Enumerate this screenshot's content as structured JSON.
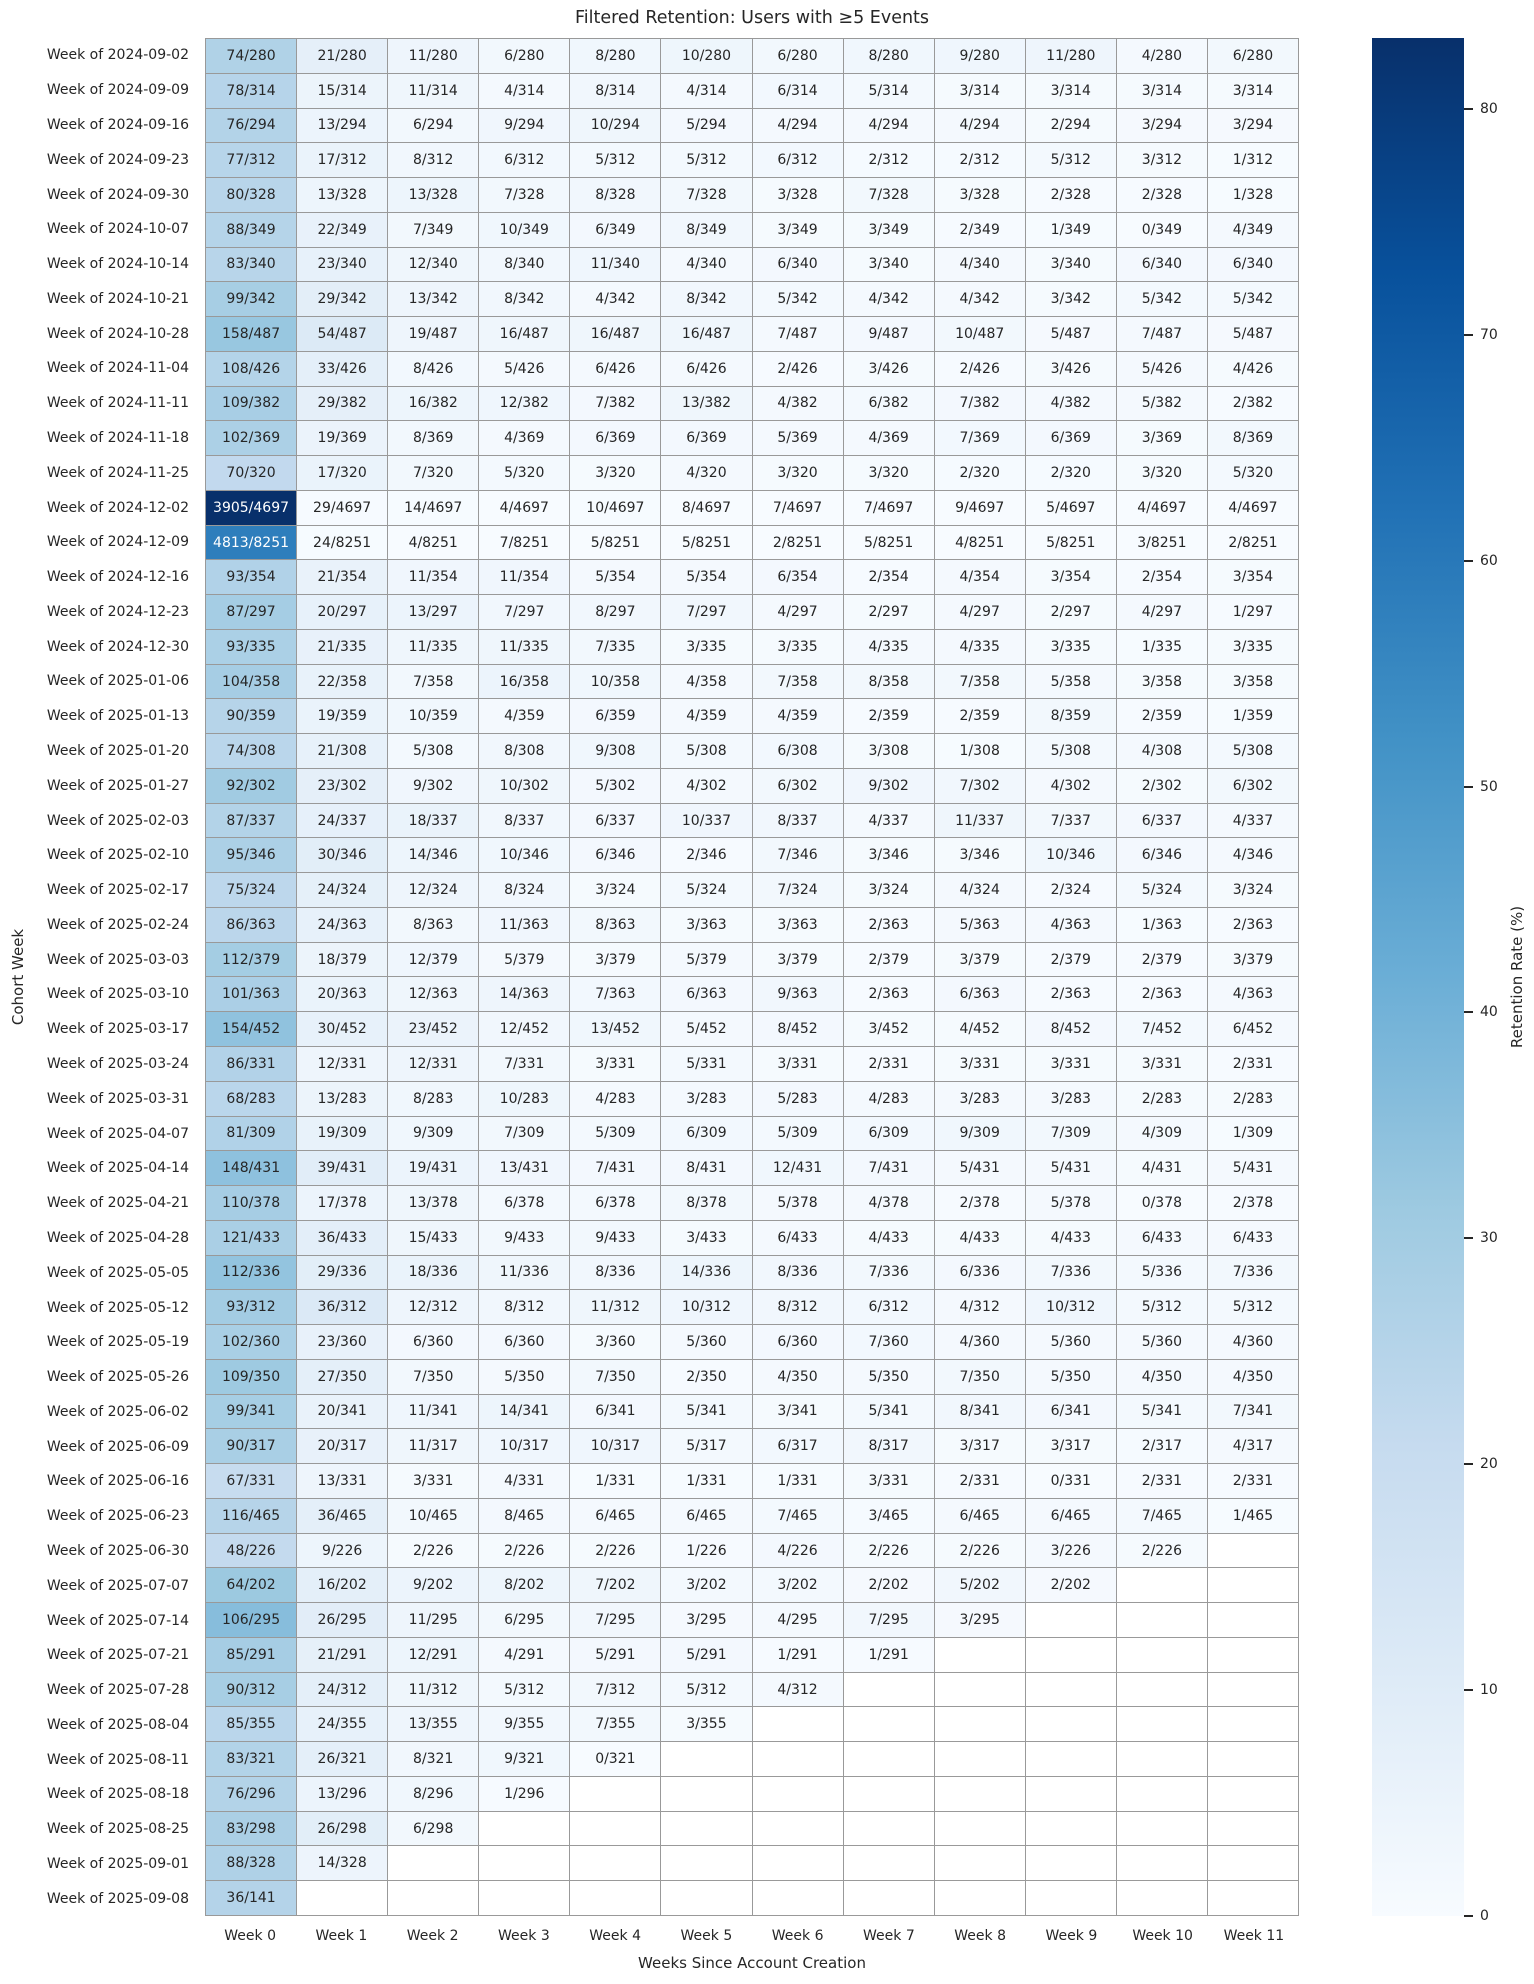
{
  "chart_data": {
    "type": "heatmap",
    "title": "Filtered Retention: Users with ≥5 Events",
    "xlabel": "Weeks Since Account Creation",
    "ylabel": "Cohort Week",
    "x_labels": [
      "Week 0",
      "Week 1",
      "Week 2",
      "Week 3",
      "Week 4",
      "Week 5",
      "Week 6",
      "Week 7",
      "Week 8",
      "Week 9",
      "Week 10",
      "Week 11"
    ],
    "cell_format": "retained/cohort_size",
    "colorbar": {
      "label": "Retention Rate (%)",
      "ticks": [
        0,
        10,
        20,
        30,
        40,
        50,
        60,
        70,
        80
      ],
      "colormap": "Blues",
      "vmin": 0
    },
    "rows": [
      {
        "label": "Week of 2024-09-02",
        "denominator": 280,
        "counts": [
          74,
          21,
          11,
          6,
          8,
          10,
          6,
          8,
          9,
          11,
          4,
          6
        ]
      },
      {
        "label": "Week of 2024-09-09",
        "denominator": 314,
        "counts": [
          78,
          15,
          11,
          4,
          8,
          4,
          6,
          5,
          3,
          3,
          3,
          3
        ]
      },
      {
        "label": "Week of 2024-09-16",
        "denominator": 294,
        "counts": [
          76,
          13,
          6,
          9,
          10,
          5,
          4,
          4,
          4,
          2,
          3,
          3
        ]
      },
      {
        "label": "Week of 2024-09-23",
        "denominator": 312,
        "counts": [
          77,
          17,
          8,
          6,
          5,
          5,
          6,
          2,
          2,
          5,
          3,
          1
        ]
      },
      {
        "label": "Week of 2024-09-30",
        "denominator": 328,
        "counts": [
          80,
          13,
          13,
          7,
          8,
          7,
          3,
          7,
          3,
          2,
          2,
          1
        ]
      },
      {
        "label": "Week of 2024-10-07",
        "denominator": 349,
        "counts": [
          88,
          22,
          7,
          10,
          6,
          8,
          3,
          3,
          2,
          1,
          0,
          4
        ]
      },
      {
        "label": "Week of 2024-10-14",
        "denominator": 340,
        "counts": [
          83,
          23,
          12,
          8,
          11,
          4,
          6,
          3,
          4,
          3,
          6,
          6
        ]
      },
      {
        "label": "Week of 2024-10-21",
        "denominator": 342,
        "counts": [
          99,
          29,
          13,
          8,
          4,
          8,
          5,
          4,
          4,
          3,
          5,
          5
        ]
      },
      {
        "label": "Week of 2024-10-28",
        "denominator": 487,
        "counts": [
          158,
          54,
          19,
          16,
          16,
          16,
          7,
          9,
          10,
          5,
          7,
          5
        ]
      },
      {
        "label": "Week of 2024-11-04",
        "denominator": 426,
        "counts": [
          108,
          33,
          8,
          5,
          6,
          6,
          2,
          3,
          2,
          3,
          5,
          4
        ]
      },
      {
        "label": "Week of 2024-11-11",
        "denominator": 382,
        "counts": [
          109,
          29,
          16,
          12,
          7,
          13,
          4,
          6,
          7,
          4,
          5,
          2
        ]
      },
      {
        "label": "Week of 2024-11-18",
        "denominator": 369,
        "counts": [
          102,
          19,
          8,
          4,
          6,
          6,
          5,
          4,
          7,
          6,
          3,
          8
        ]
      },
      {
        "label": "Week of 2024-11-25",
        "denominator": 320,
        "counts": [
          70,
          17,
          7,
          5,
          3,
          4,
          3,
          3,
          2,
          2,
          3,
          5
        ]
      },
      {
        "label": "Week of 2024-12-02",
        "denominator": 4697,
        "counts": [
          3905,
          29,
          14,
          4,
          10,
          8,
          7,
          7,
          9,
          5,
          4,
          4
        ]
      },
      {
        "label": "Week of 2024-12-09",
        "denominator": 8251,
        "counts": [
          4813,
          24,
          4,
          7,
          5,
          5,
          2,
          5,
          4,
          5,
          3,
          2
        ]
      },
      {
        "label": "Week of 2024-12-16",
        "denominator": 354,
        "counts": [
          93,
          21,
          11,
          11,
          5,
          5,
          6,
          2,
          4,
          3,
          2,
          3
        ]
      },
      {
        "label": "Week of 2024-12-23",
        "denominator": 297,
        "counts": [
          87,
          20,
          13,
          7,
          8,
          7,
          4,
          2,
          4,
          2,
          4,
          1
        ]
      },
      {
        "label": "Week of 2024-12-30",
        "denominator": 335,
        "counts": [
          93,
          21,
          11,
          11,
          7,
          3,
          3,
          4,
          4,
          3,
          1,
          3
        ]
      },
      {
        "label": "Week of 2025-01-06",
        "denominator": 358,
        "counts": [
          104,
          22,
          7,
          16,
          10,
          4,
          7,
          8,
          7,
          5,
          3,
          3
        ]
      },
      {
        "label": "Week of 2025-01-13",
        "denominator": 359,
        "counts": [
          90,
          19,
          10,
          4,
          6,
          4,
          4,
          2,
          2,
          8,
          2,
          1
        ]
      },
      {
        "label": "Week of 2025-01-20",
        "denominator": 308,
        "counts": [
          74,
          21,
          5,
          8,
          9,
          5,
          6,
          3,
          1,
          5,
          4,
          5
        ]
      },
      {
        "label": "Week of 2025-01-27",
        "denominator": 302,
        "counts": [
          92,
          23,
          9,
          10,
          5,
          4,
          6,
          9,
          7,
          4,
          2,
          6
        ]
      },
      {
        "label": "Week of 2025-02-03",
        "denominator": 337,
        "counts": [
          87,
          24,
          18,
          8,
          6,
          10,
          8,
          4,
          11,
          7,
          6,
          4
        ]
      },
      {
        "label": "Week of 2025-02-10",
        "denominator": 346,
        "counts": [
          95,
          30,
          14,
          10,
          6,
          2,
          7,
          3,
          3,
          10,
          6,
          4
        ]
      },
      {
        "label": "Week of 2025-02-17",
        "denominator": 324,
        "counts": [
          75,
          24,
          12,
          8,
          3,
          5,
          7,
          3,
          4,
          2,
          5,
          3
        ]
      },
      {
        "label": "Week of 2025-02-24",
        "denominator": 363,
        "counts": [
          86,
          24,
          8,
          11,
          8,
          3,
          3,
          2,
          5,
          4,
          1,
          2
        ]
      },
      {
        "label": "Week of 2025-03-03",
        "denominator": 379,
        "counts": [
          112,
          18,
          12,
          5,
          3,
          5,
          3,
          2,
          3,
          2,
          2,
          3
        ]
      },
      {
        "label": "Week of 2025-03-10",
        "denominator": 363,
        "counts": [
          101,
          20,
          12,
          14,
          7,
          6,
          9,
          2,
          6,
          2,
          2,
          4
        ]
      },
      {
        "label": "Week of 2025-03-17",
        "denominator": 452,
        "counts": [
          154,
          30,
          23,
          12,
          13,
          5,
          8,
          3,
          4,
          8,
          7,
          6
        ]
      },
      {
        "label": "Week of 2025-03-24",
        "denominator": 331,
        "counts": [
          86,
          12,
          12,
          7,
          3,
          5,
          3,
          2,
          3,
          3,
          3,
          2
        ]
      },
      {
        "label": "Week of 2025-03-31",
        "denominator": 283,
        "counts": [
          68,
          13,
          8,
          10,
          4,
          3,
          5,
          4,
          3,
          3,
          2,
          2
        ]
      },
      {
        "label": "Week of 2025-04-07",
        "denominator": 309,
        "counts": [
          81,
          19,
          9,
          7,
          5,
          6,
          5,
          6,
          9,
          7,
          4,
          1
        ]
      },
      {
        "label": "Week of 2025-04-14",
        "denominator": 431,
        "counts": [
          148,
          39,
          19,
          13,
          7,
          8,
          12,
          7,
          5,
          5,
          4,
          5
        ]
      },
      {
        "label": "Week of 2025-04-21",
        "denominator": 378,
        "counts": [
          110,
          17,
          13,
          6,
          6,
          8,
          5,
          4,
          2,
          5,
          0,
          2
        ]
      },
      {
        "label": "Week of 2025-04-28",
        "denominator": 433,
        "counts": [
          121,
          36,
          15,
          9,
          9,
          3,
          6,
          4,
          4,
          4,
          6,
          6
        ]
      },
      {
        "label": "Week of 2025-05-05",
        "denominator": 336,
        "counts": [
          112,
          29,
          18,
          11,
          8,
          14,
          8,
          7,
          6,
          7,
          5,
          7
        ]
      },
      {
        "label": "Week of 2025-05-12",
        "denominator": 312,
        "counts": [
          93,
          36,
          12,
          8,
          11,
          10,
          8,
          6,
          4,
          10,
          5,
          5
        ]
      },
      {
        "label": "Week of 2025-05-19",
        "denominator": 360,
        "counts": [
          102,
          23,
          6,
          6,
          3,
          5,
          6,
          7,
          4,
          5,
          5,
          4
        ]
      },
      {
        "label": "Week of 2025-05-26",
        "denominator": 350,
        "counts": [
          109,
          27,
          7,
          5,
          7,
          2,
          4,
          5,
          7,
          5,
          4,
          4
        ]
      },
      {
        "label": "Week of 2025-06-02",
        "denominator": 341,
        "counts": [
          99,
          20,
          11,
          14,
          6,
          5,
          3,
          5,
          8,
          6,
          5,
          7
        ]
      },
      {
        "label": "Week of 2025-06-09",
        "denominator": 317,
        "counts": [
          90,
          20,
          11,
          10,
          10,
          5,
          6,
          8,
          3,
          3,
          2,
          4
        ]
      },
      {
        "label": "Week of 2025-06-16",
        "denominator": 331,
        "counts": [
          67,
          13,
          3,
          4,
          1,
          1,
          1,
          3,
          2,
          0,
          2,
          2
        ]
      },
      {
        "label": "Week of 2025-06-23",
        "denominator": 465,
        "counts": [
          116,
          36,
          10,
          8,
          6,
          6,
          7,
          3,
          6,
          6,
          7,
          1
        ]
      },
      {
        "label": "Week of 2025-06-30",
        "denominator": 226,
        "counts": [
          48,
          9,
          2,
          2,
          2,
          1,
          4,
          2,
          2,
          3,
          2,
          null
        ]
      },
      {
        "label": "Week of 2025-07-07",
        "denominator": 202,
        "counts": [
          64,
          16,
          9,
          8,
          7,
          3,
          3,
          2,
          5,
          2,
          null,
          null
        ]
      },
      {
        "label": "Week of 2025-07-14",
        "denominator": 295,
        "counts": [
          106,
          26,
          11,
          6,
          7,
          3,
          4,
          7,
          3,
          null,
          null,
          null
        ]
      },
      {
        "label": "Week of 2025-07-21",
        "denominator": 291,
        "counts": [
          85,
          21,
          12,
          4,
          5,
          5,
          1,
          1,
          null,
          null,
          null,
          null
        ]
      },
      {
        "label": "Week of 2025-07-28",
        "denominator": 312,
        "counts": [
          90,
          24,
          11,
          5,
          7,
          5,
          4,
          null,
          null,
          null,
          null,
          null
        ]
      },
      {
        "label": "Week of 2025-08-04",
        "denominator": 355,
        "counts": [
          85,
          24,
          13,
          9,
          7,
          3,
          null,
          null,
          null,
          null,
          null,
          null
        ]
      },
      {
        "label": "Week of 2025-08-11",
        "denominator": 321,
        "counts": [
          83,
          26,
          8,
          9,
          0,
          null,
          null,
          null,
          null,
          null,
          null,
          null
        ]
      },
      {
        "label": "Week of 2025-08-18",
        "denominator": 296,
        "counts": [
          76,
          13,
          8,
          1,
          null,
          null,
          null,
          null,
          null,
          null,
          null,
          null
        ]
      },
      {
        "label": "Week of 2025-08-25",
        "denominator": 298,
        "counts": [
          83,
          26,
          6,
          null,
          null,
          null,
          null,
          null,
          null,
          null,
          null,
          null
        ]
      },
      {
        "label": "Week of 2025-09-01",
        "denominator": 328,
        "counts": [
          88,
          14,
          null,
          null,
          null,
          null,
          null,
          null,
          null,
          null,
          null,
          null
        ]
      },
      {
        "label": "Week of 2025-09-08",
        "denominator": 141,
        "counts": [
          36,
          null,
          null,
          null,
          null,
          null,
          null,
          null,
          null,
          null,
          null,
          null
        ]
      }
    ]
  },
  "colors": {
    "background": "#ffffff",
    "grid_line": "#999999",
    "text": "#262626",
    "annotation_dark_text": "#262626",
    "annotation_light_text": "#ffffff",
    "empty_cell": "#ffffff",
    "blues_colormap_anchors": [
      "#f7fbff",
      "#deebf7",
      "#c6dbef",
      "#9ecae1",
      "#6baed6",
      "#4292c6",
      "#2171b5",
      "#08519c",
      "#08306b"
    ]
  }
}
